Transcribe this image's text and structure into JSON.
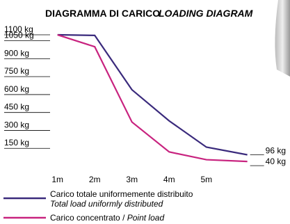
{
  "chart_data": {
    "type": "line",
    "title": "DIAGRAMMA DI CARICO",
    "subtitle": "LOADING DIAGRAM",
    "x": [
      1,
      2,
      3,
      4,
      5,
      6.1
    ],
    "xlim": [
      0.8,
      6.2
    ],
    "xticks": [
      {
        "value": 1,
        "label": "1m"
      },
      {
        "value": 2,
        "label": "2m"
      },
      {
        "value": 3,
        "label": "3m"
      },
      {
        "value": 4,
        "label": "4m"
      },
      {
        "value": 5,
        "label": "5m"
      }
    ],
    "ylim": [
      0,
      1170
    ],
    "yticks": [
      {
        "value": 1100,
        "label": "1100 kg"
      },
      {
        "value": 1050,
        "label": "1050 kg"
      },
      {
        "value": 900,
        "label": "900 kg"
      },
      {
        "value": 750,
        "label": "750 kg"
      },
      {
        "value": 600,
        "label": "600 kg"
      },
      {
        "value": 450,
        "label": "450 kg"
      },
      {
        "value": 300,
        "label": "300 kg"
      },
      {
        "value": 150,
        "label": "150 kg"
      }
    ],
    "legend_separator": "/",
    "series": [
      {
        "name": "Carico totale uniformemente distribuito",
        "name_en": "Total load uniformly distributed",
        "color": "#3a2a7c",
        "values": [
          1100,
          1095,
          640,
          380,
          160,
          96
        ],
        "value_labels": [
          null,
          null,
          null,
          null,
          null,
          "96 kg"
        ]
      },
      {
        "name": "Carico concentrato",
        "name_en": "Point load",
        "color": "#c8237f",
        "values": [
          1100,
          1000,
          370,
          120,
          55,
          40
        ],
        "value_labels": [
          null,
          null,
          null,
          null,
          null,
          "40 kg"
        ]
      }
    ]
  }
}
